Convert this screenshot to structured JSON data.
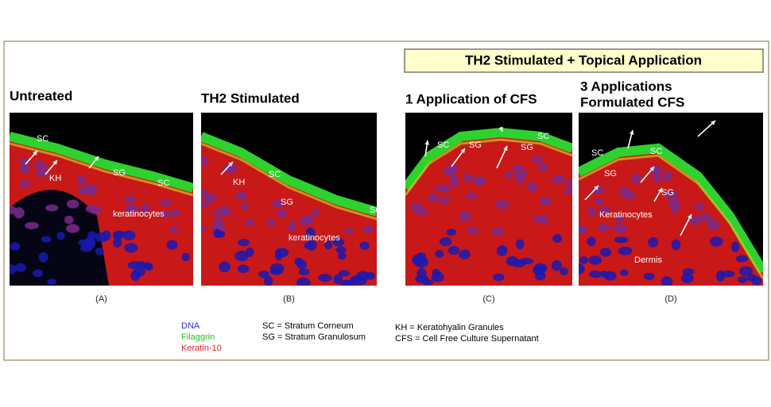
{
  "header": {
    "title": "TH2  Stimulated + Topical Application"
  },
  "panels": [
    {
      "title": [
        "Untreated"
      ],
      "caption": "(A)",
      "labels": [
        "SC",
        "KH",
        "SG",
        "SC",
        "keratinocytes"
      ]
    },
    {
      "title": [
        "TH2 Stimulated"
      ],
      "caption": "(B)",
      "labels": [
        "KH",
        "SC",
        "SG",
        "SG",
        "keratinocytes"
      ]
    },
    {
      "title": [
        "1 Application of CFS"
      ],
      "caption": "(C)",
      "labels": [
        "SC",
        "SG",
        "SG",
        "SC"
      ]
    },
    {
      "title": [
        "3 Applications",
        "Formulated CFS"
      ],
      "caption": "(D)",
      "labels": [
        "SC",
        "SC",
        "SG",
        "SG",
        "Keratinocytes",
        "Dermis"
      ]
    }
  ],
  "legend": {
    "stains": [
      {
        "name": "DNA",
        "color": "#2b2bd6"
      },
      {
        "name": "Filaggrin",
        "color": "#22c322"
      },
      {
        "name": "Keratin-10",
        "color": "#e02020"
      }
    ],
    "abbreviations_left": [
      "SC = Stratum Corneum",
      "SG = Stratum Granulosum"
    ],
    "abbreviations_right": [
      "KH = Keratohyalin Granules",
      "CFS = Cell Free Culture Supernatant"
    ]
  }
}
